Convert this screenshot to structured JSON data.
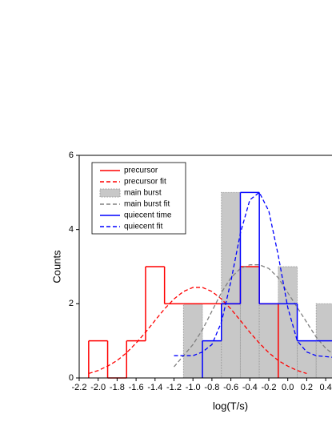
{
  "chart_data": {
    "type": "histogram",
    "xlabel": "log(T/s)",
    "ylabel": "Counts",
    "xlim": [
      -2.2,
      0.6
    ],
    "ylim": [
      0,
      6
    ],
    "xticks": [
      -2.2,
      {
        "value": -2.0,
        "label": "-2.0"
      },
      -1.8,
      -1.6,
      -1.4,
      -1.2,
      {
        "value": -1.0,
        "label": "-1.0"
      },
      -0.8,
      -0.6,
      -0.4,
      -0.2,
      {
        "value": 0.0,
        "label": "0.0"
      },
      0.2,
      0.4
    ],
    "yticks": [
      0,
      2,
      4,
      6
    ],
    "legend": "upper-left",
    "series": [
      {
        "name": "precursor",
        "type": "histogram",
        "style": "solid",
        "color": "#ff0000",
        "bins": [
          -2.1,
          -1.9,
          -1.7,
          -1.5,
          -1.3,
          -1.1,
          -0.9,
          -0.7,
          -0.5,
          -0.3,
          -0.1
        ],
        "values": [
          1,
          0,
          1,
          3,
          2,
          2,
          2,
          2,
          3,
          2
        ]
      },
      {
        "name": "precursor fit",
        "type": "line",
        "style": "dashed",
        "color": "#ff0000",
        "x": [
          -2.1,
          -2.0,
          -1.9,
          -1.8,
          -1.7,
          -1.6,
          -1.5,
          -1.4,
          -1.3,
          -1.2,
          -1.1,
          -1.0,
          -0.9,
          -0.8,
          -0.7,
          -0.6,
          -0.5,
          -0.4,
          -0.3,
          -0.2,
          -0.1,
          0.0,
          0.1,
          0.2
        ],
        "values": [
          0.12,
          0.2,
          0.32,
          0.47,
          0.68,
          0.94,
          1.23,
          1.55,
          1.86,
          2.13,
          2.33,
          2.44,
          2.44,
          2.33,
          2.13,
          1.86,
          1.55,
          1.23,
          0.94,
          0.68,
          0.47,
          0.32,
          0.2,
          0.12
        ]
      },
      {
        "name": "main burst",
        "type": "histogram",
        "style": "filled",
        "color": "#c8c8c8",
        "bins": [
          -1.1,
          -0.9,
          -0.7,
          -0.5,
          -0.3,
          -0.1,
          0.1,
          0.3,
          0.5
        ],
        "values": [
          2,
          1,
          5,
          3,
          2,
          3,
          1,
          2
        ]
      },
      {
        "name": "main burst fit",
        "type": "line",
        "style": "dashed",
        "color": "#808080",
        "x": [
          -1.2,
          -1.1,
          -1.0,
          -0.9,
          -0.8,
          -0.7,
          -0.6,
          -0.5,
          -0.4,
          -0.3,
          -0.2,
          -0.1,
          0.0,
          0.1,
          0.2,
          0.3,
          0.4,
          0.5
        ],
        "values": [
          0.3,
          0.6,
          0.9,
          1.3,
          1.8,
          2.3,
          2.7,
          2.95,
          3.05,
          3.05,
          2.95,
          2.7,
          2.3,
          1.9,
          1.5,
          1.1,
          0.8,
          0.6
        ]
      },
      {
        "name": "quiecent time",
        "type": "histogram",
        "style": "solid",
        "color": "#0000ff",
        "bins": [
          -0.9,
          -0.7,
          -0.5,
          -0.3,
          -0.1,
          0.1,
          0.3,
          0.5
        ],
        "values": [
          1,
          2,
          5,
          2,
          2,
          1,
          1
        ]
      },
      {
        "name": "quiecent fit",
        "type": "line",
        "style": "dashed",
        "color": "#0000ff",
        "x": [
          -1.2,
          -1.0,
          -0.9,
          -0.8,
          -0.7,
          -0.6,
          -0.5,
          -0.4,
          -0.3,
          -0.2,
          -0.1,
          0.0,
          0.1,
          0.2,
          0.3,
          0.5
        ],
        "values": [
          0.6,
          0.6,
          0.7,
          0.9,
          1.5,
          2.6,
          3.9,
          4.8,
          5.0,
          4.5,
          3.3,
          1.9,
          1.0,
          0.7,
          0.6,
          0.55
        ]
      }
    ]
  }
}
